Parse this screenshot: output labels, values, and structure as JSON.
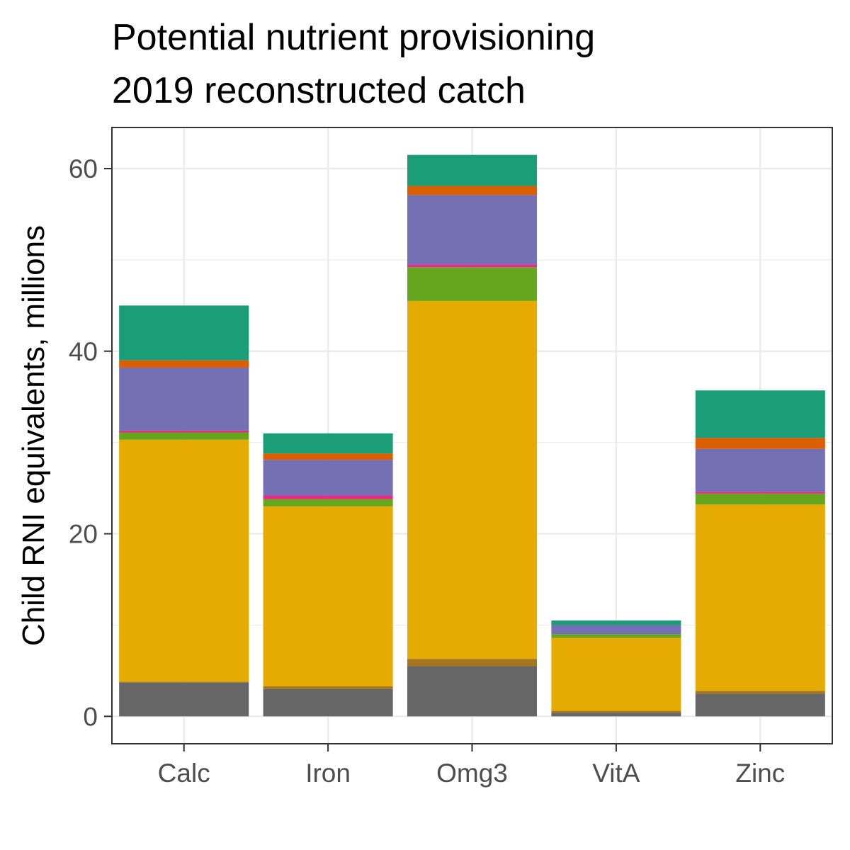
{
  "chart_data": {
    "type": "bar",
    "stacked": true,
    "title": [
      "Potential nutrient provisioning",
      "2019 reconstructed catch"
    ],
    "xlabel": "",
    "ylabel": "Child RNI equivalents, millions",
    "categories": [
      "Calc",
      "Iron",
      "Omg3",
      "VitA",
      "Zinc"
    ],
    "ylim": [
      -3,
      64.5
    ],
    "yticks": [
      0,
      20,
      40,
      60
    ],
    "grid": true,
    "legend": "none",
    "series": [
      {
        "color": "#666666",
        "values": [
          3.7,
          3.0,
          5.5,
          0.4,
          2.5
        ]
      },
      {
        "color": "#a6761d",
        "values": [
          0.1,
          0.3,
          0.8,
          0.2,
          0.3
        ]
      },
      {
        "color": "#e6ab02",
        "values": [
          26.5,
          19.7,
          39.2,
          8.0,
          20.4
        ]
      },
      {
        "color": "#66a61e",
        "values": [
          0.8,
          0.8,
          3.7,
          0.4,
          1.2
        ]
      },
      {
        "color": "#e7298a",
        "values": [
          0.2,
          0.4,
          0.3,
          0.0,
          0.2
        ]
      },
      {
        "color": "#7570b3",
        "values": [
          6.9,
          3.9,
          7.6,
          1.0,
          4.7
        ]
      },
      {
        "color": "#d95f02",
        "values": [
          0.8,
          0.7,
          1.0,
          0.0,
          1.2
        ]
      },
      {
        "color": "#1b9e77",
        "values": [
          6.0,
          2.2,
          3.4,
          0.5,
          5.2
        ]
      }
    ]
  }
}
